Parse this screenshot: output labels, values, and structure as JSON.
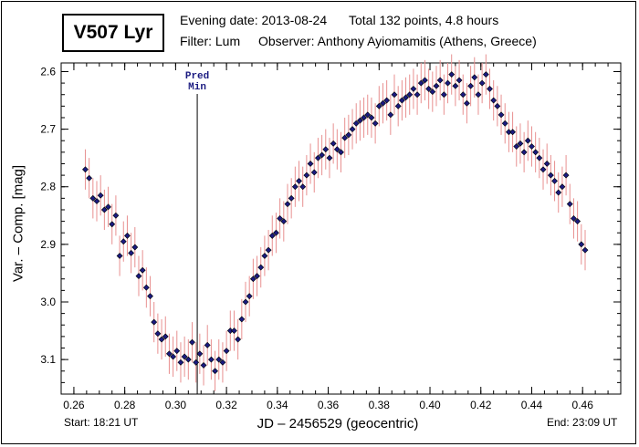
{
  "header": {
    "star_name": "V507 Lyr",
    "evening_date": "Evening date: 2013-08-24",
    "total": "Total 132 points, 4.8 hours",
    "filter": "Filter: Lum",
    "observer": "Observer: Anthony Ayiomamitis (Athens, Greece)"
  },
  "footer": {
    "start": "Start: 18:21 UT",
    "end": "End: 23:09 UT"
  },
  "chart_data": {
    "type": "scatter",
    "title": "V507 Lyr",
    "xlabel": "JD – 2456529  (geocentric)",
    "ylabel": "Var. – Comp. [mag]",
    "xlim": [
      0.255,
      0.475
    ],
    "ylim": [
      2.585,
      3.16
    ],
    "y_inverted": true,
    "x_ticks": [
      0.26,
      0.28,
      0.3,
      0.32,
      0.34,
      0.36,
      0.38,
      0.4,
      0.42,
      0.44,
      0.46
    ],
    "x_tick_labels": [
      "0.26",
      "0.28",
      "0.30",
      "0.32",
      "0.34",
      "0.36",
      "0.38",
      "0.40",
      "0.42",
      "0.44",
      "0.46"
    ],
    "y_ticks": [
      2.6,
      2.7,
      2.8,
      2.9,
      3.0,
      3.1
    ],
    "y_tick_labels": [
      "2.6",
      "2.7",
      "2.8",
      "2.9",
      "3.0",
      "3.1"
    ],
    "annotation": {
      "label_line1": "Pred",
      "label_line2": "Min",
      "x": 0.3085
    },
    "colors": {
      "marker": "#1a1a80",
      "errorbar": "#e89090"
    },
    "series": [
      {
        "name": "V507 Lyr",
        "x": [
          0.2645,
          0.266,
          0.2675,
          0.269,
          0.2705,
          0.272,
          0.2735,
          0.275,
          0.2765,
          0.278,
          0.2795,
          0.281,
          0.2825,
          0.284,
          0.2855,
          0.287,
          0.2885,
          0.29,
          0.2915,
          0.293,
          0.2945,
          0.296,
          0.2975,
          0.299,
          0.3005,
          0.302,
          0.3035,
          0.305,
          0.3065,
          0.308,
          0.3095,
          0.311,
          0.3125,
          0.314,
          0.3155,
          0.317,
          0.3185,
          0.32,
          0.3215,
          0.323,
          0.3245,
          0.326,
          0.3275,
          0.329,
          0.3305,
          0.332,
          0.3335,
          0.335,
          0.3365,
          0.338,
          0.3395,
          0.341,
          0.3425,
          0.344,
          0.3455,
          0.347,
          0.3485,
          0.35,
          0.3515,
          0.353,
          0.3545,
          0.356,
          0.3575,
          0.359,
          0.3605,
          0.362,
          0.3635,
          0.365,
          0.3665,
          0.368,
          0.3695,
          0.371,
          0.3725,
          0.374,
          0.3755,
          0.377,
          0.3785,
          0.38,
          0.3815,
          0.383,
          0.3845,
          0.386,
          0.3875,
          0.389,
          0.3905,
          0.392,
          0.3935,
          0.395,
          0.3965,
          0.398,
          0.3995,
          0.401,
          0.4025,
          0.404,
          0.4055,
          0.407,
          0.4085,
          0.41,
          0.4115,
          0.413,
          0.4145,
          0.416,
          0.4175,
          0.419,
          0.4205,
          0.422,
          0.4235,
          0.425,
          0.4265,
          0.428,
          0.4295,
          0.431,
          0.4325,
          0.434,
          0.4355,
          0.437,
          0.4385,
          0.44,
          0.4415,
          0.443,
          0.4445,
          0.446,
          0.4475,
          0.449,
          0.4505,
          0.452,
          0.4535,
          0.455,
          0.4565,
          0.458,
          0.4595,
          0.461
        ],
        "y": [
          2.77,
          2.785,
          2.82,
          2.825,
          2.815,
          2.84,
          2.835,
          2.865,
          2.85,
          2.92,
          2.895,
          2.885,
          2.915,
          2.905,
          2.955,
          2.945,
          2.975,
          2.99,
          3.035,
          3.055,
          3.065,
          3.06,
          3.09,
          3.095,
          3.085,
          3.105,
          3.095,
          3.1,
          3.07,
          3.105,
          3.09,
          3.11,
          3.075,
          3.1,
          3.12,
          3.1,
          3.105,
          3.085,
          3.05,
          3.05,
          3.065,
          3.03,
          3.0,
          2.99,
          2.96,
          2.955,
          2.94,
          2.92,
          2.91,
          2.885,
          2.88,
          2.855,
          2.86,
          2.83,
          2.82,
          2.8,
          2.79,
          2.8,
          2.78,
          2.76,
          2.775,
          2.75,
          2.745,
          2.735,
          2.75,
          2.725,
          2.735,
          2.74,
          2.715,
          2.71,
          2.7,
          2.69,
          2.685,
          2.68,
          2.675,
          2.68,
          2.69,
          2.66,
          2.655,
          2.65,
          2.675,
          2.64,
          2.66,
          2.65,
          2.645,
          2.64,
          2.63,
          2.64,
          2.62,
          2.615,
          2.63,
          2.635,
          2.625,
          2.615,
          2.64,
          2.62,
          2.605,
          2.625,
          2.615,
          2.64,
          2.655,
          2.625,
          2.61,
          2.64,
          2.62,
          2.605,
          2.63,
          2.65,
          2.66,
          2.675,
          2.69,
          2.705,
          2.705,
          2.73,
          2.725,
          2.74,
          2.72,
          2.73,
          2.74,
          2.75,
          2.77,
          2.76,
          2.78,
          2.79,
          2.81,
          2.8,
          2.78,
          2.83,
          2.855,
          2.86,
          2.9,
          2.91
        ],
        "yerr": 0.035
      }
    ]
  }
}
